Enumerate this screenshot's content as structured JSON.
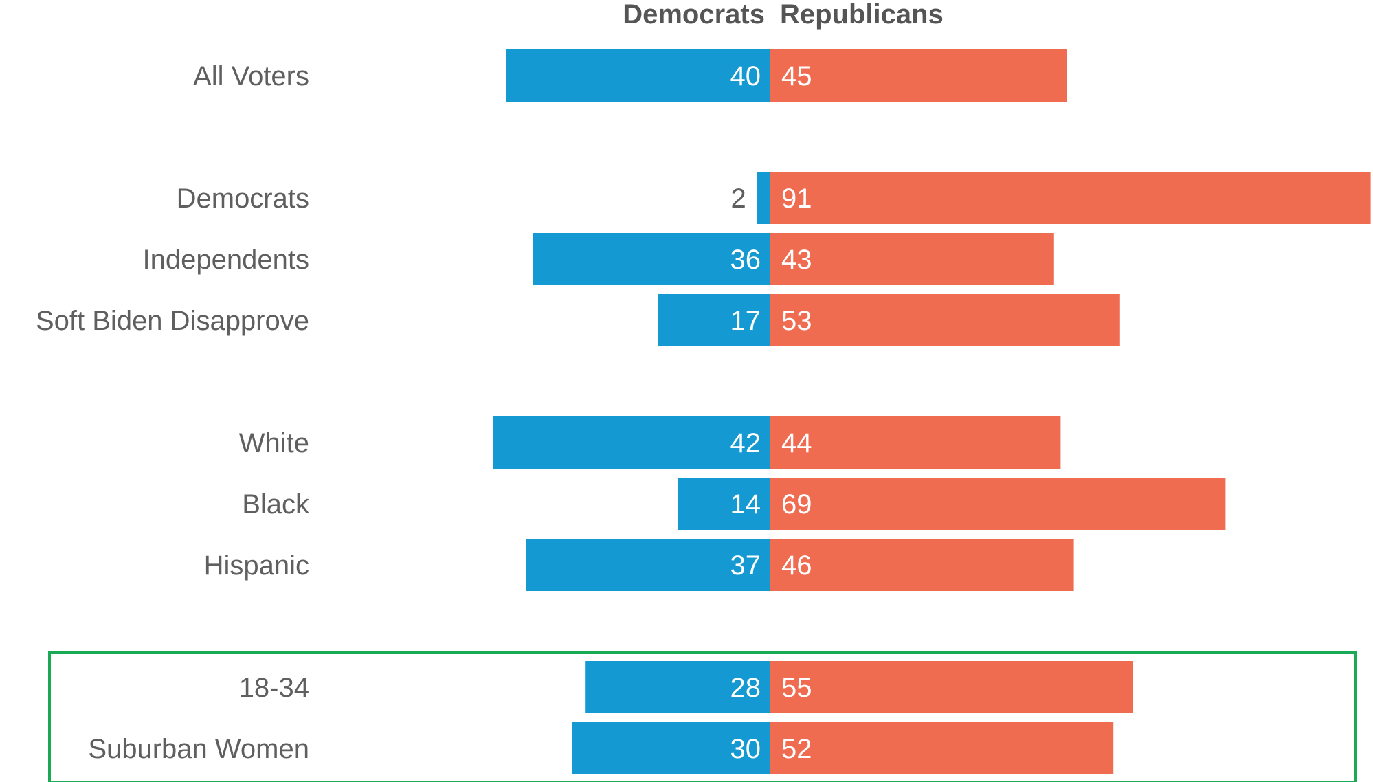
{
  "chart_data": {
    "type": "bar",
    "orientation": "horizontal-diverging",
    "series": [
      {
        "name": "Democrats",
        "color": "#1599d2",
        "values": [
          40,
          2,
          36,
          17,
          42,
          14,
          37,
          28,
          30
        ]
      },
      {
        "name": "Republicans",
        "color": "#f06c51",
        "values": [
          45,
          91,
          43,
          53,
          44,
          69,
          46,
          55,
          52
        ]
      }
    ],
    "categories": [
      "All Voters",
      "Democrats",
      "Independents",
      "Soft Biden Disapprove",
      "White",
      "Black",
      "Hispanic",
      "18-34",
      "Suburban Women"
    ],
    "groups": [
      [
        "All Voters"
      ],
      [
        "Democrats",
        "Independents",
        "Soft Biden Disapprove"
      ],
      [
        "White",
        "Black",
        "Hispanic"
      ],
      [
        "18-34",
        "Suburban Women"
      ]
    ],
    "highlight": {
      "categories": [
        "18-34",
        "Suburban Women"
      ],
      "color": "#1aaa55"
    },
    "title": "",
    "xlabel": "",
    "ylabel": "",
    "grid": false,
    "legend": "top"
  }
}
